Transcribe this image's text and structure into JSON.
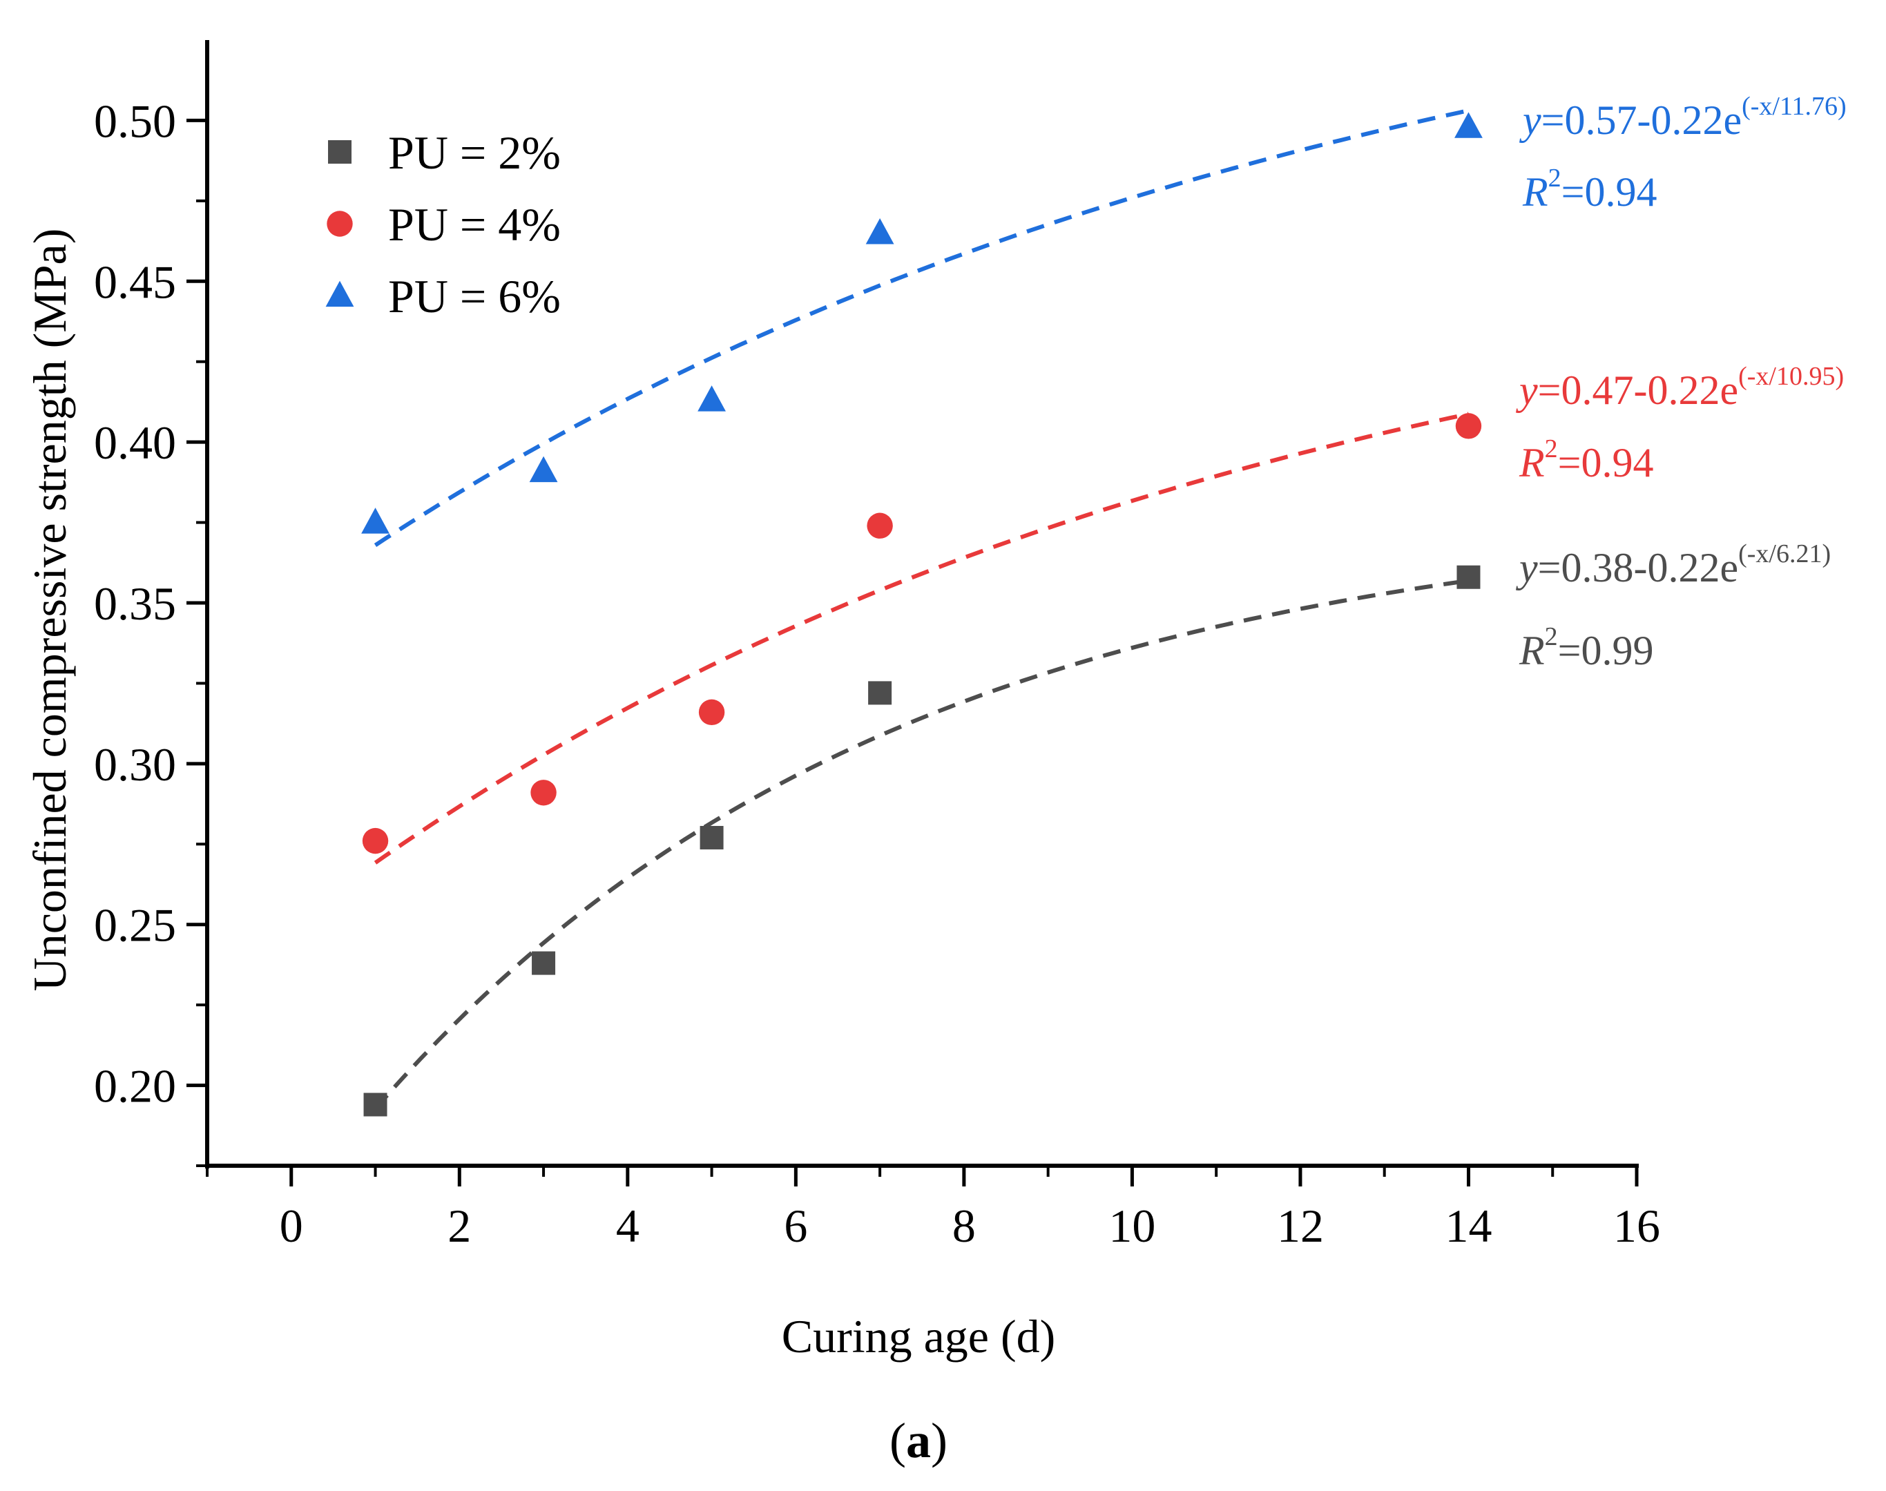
{
  "chart_data": {
    "type": "scatter",
    "title": "",
    "xlabel": "Curing age (d)",
    "ylabel": "Unconfined compressive strength (MPa)",
    "panel_label": "a",
    "xlim": [
      -1,
      16
    ],
    "ylim": [
      0.175,
      0.525
    ],
    "x_ticks": [
      0,
      2,
      4,
      6,
      8,
      10,
      12,
      14,
      16
    ],
    "y_ticks": [
      0.2,
      0.25,
      0.3,
      0.35,
      0.4,
      0.45,
      0.5
    ],
    "legend_position": "top-left",
    "series": [
      {
        "name": "PU = 2%",
        "marker": "square",
        "color": "#4d4d4d",
        "x": [
          1,
          3,
          5,
          7,
          14
        ],
        "y": [
          0.194,
          0.238,
          0.277,
          0.322,
          0.358
        ],
        "fit": {
          "a": 0.38,
          "b": 0.22,
          "t": 6.21,
          "eq_y": "y",
          "eq_rest": "=0.38-0.22e",
          "eq_sup": "(-x/6.21)",
          "r2_r": "R",
          "r2_sup": "2",
          "r2_rest": "=0.99"
        }
      },
      {
        "name": "PU = 4%",
        "marker": "circle",
        "color": "#e8393a",
        "x": [
          1,
          3,
          5,
          7,
          14
        ],
        "y": [
          0.276,
          0.291,
          0.316,
          0.374,
          0.405
        ],
        "fit": {
          "a": 0.47,
          "b": 0.22,
          "t": 10.95,
          "eq_y": "y",
          "eq_rest": "=0.47-0.22e",
          "eq_sup": "(-x/10.95)",
          "r2_r": "R",
          "r2_sup": "2",
          "r2_rest": "=0.94"
        }
      },
      {
        "name": "PU = 6%",
        "marker": "triangle",
        "color": "#1f6fdc",
        "x": [
          1,
          3,
          5,
          7,
          14
        ],
        "y": [
          0.375,
          0.391,
          0.413,
          0.465,
          0.498
        ],
        "fit": {
          "a": 0.57,
          "b": 0.22,
          "t": 11.76,
          "eq_y": "y",
          "eq_rest": "=0.57-0.22e",
          "eq_sup": "(-x/11.76)",
          "r2_r": "R",
          "r2_sup": "2",
          "r2_rest": "=0.94"
        }
      }
    ]
  }
}
